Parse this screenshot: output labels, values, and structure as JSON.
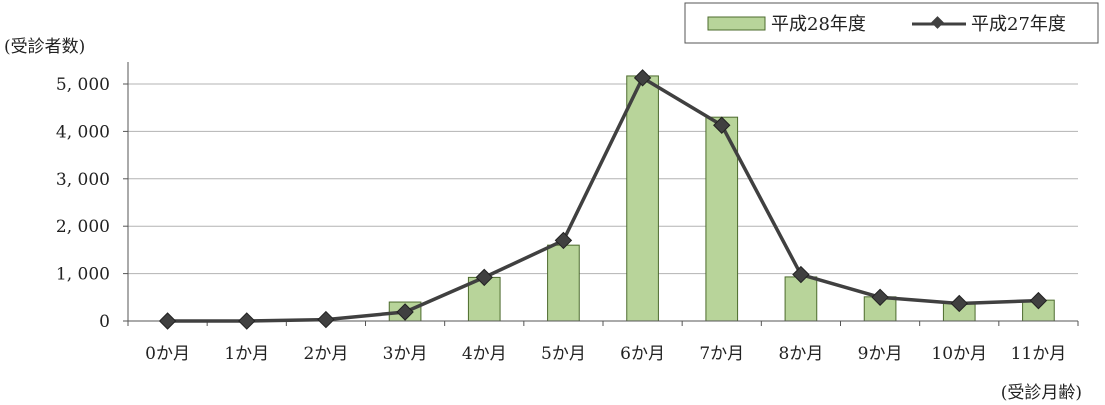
{
  "chart_data": {
    "type": "bar",
    "ylabel": "(受診者数)",
    "xlabel": "(受診月齢)",
    "categories": [
      "0か月",
      "1か月",
      "2か月",
      "3か月",
      "4か月",
      "5か月",
      "6か月",
      "7か月",
      "8か月",
      "9か月",
      "10か月",
      "11か月"
    ],
    "series": [
      {
        "name": "平成28年度",
        "type": "bar",
        "values": [
          0,
          0,
          0,
          400,
          920,
          1600,
          5170,
          4300,
          930,
          510,
          390,
          440
        ]
      },
      {
        "name": "平成27年度",
        "type": "line",
        "values": [
          0,
          0,
          30,
          190,
          920,
          1700,
          5130,
          4130,
          980,
          500,
          370,
          430
        ]
      }
    ],
    "ylim": [
      0,
      5000
    ],
    "yticks": [
      "0",
      "1, 000",
      "2, 000",
      "3, 000",
      "4, 000",
      "5, 000"
    ],
    "grid": true,
    "legend_position": "top-right",
    "colors": {
      "bar_fill": "#b8d49a",
      "bar_stroke": "#4d6b2e",
      "line": "#404040",
      "marker": "#404040",
      "grid": "#b3b3b3"
    }
  }
}
